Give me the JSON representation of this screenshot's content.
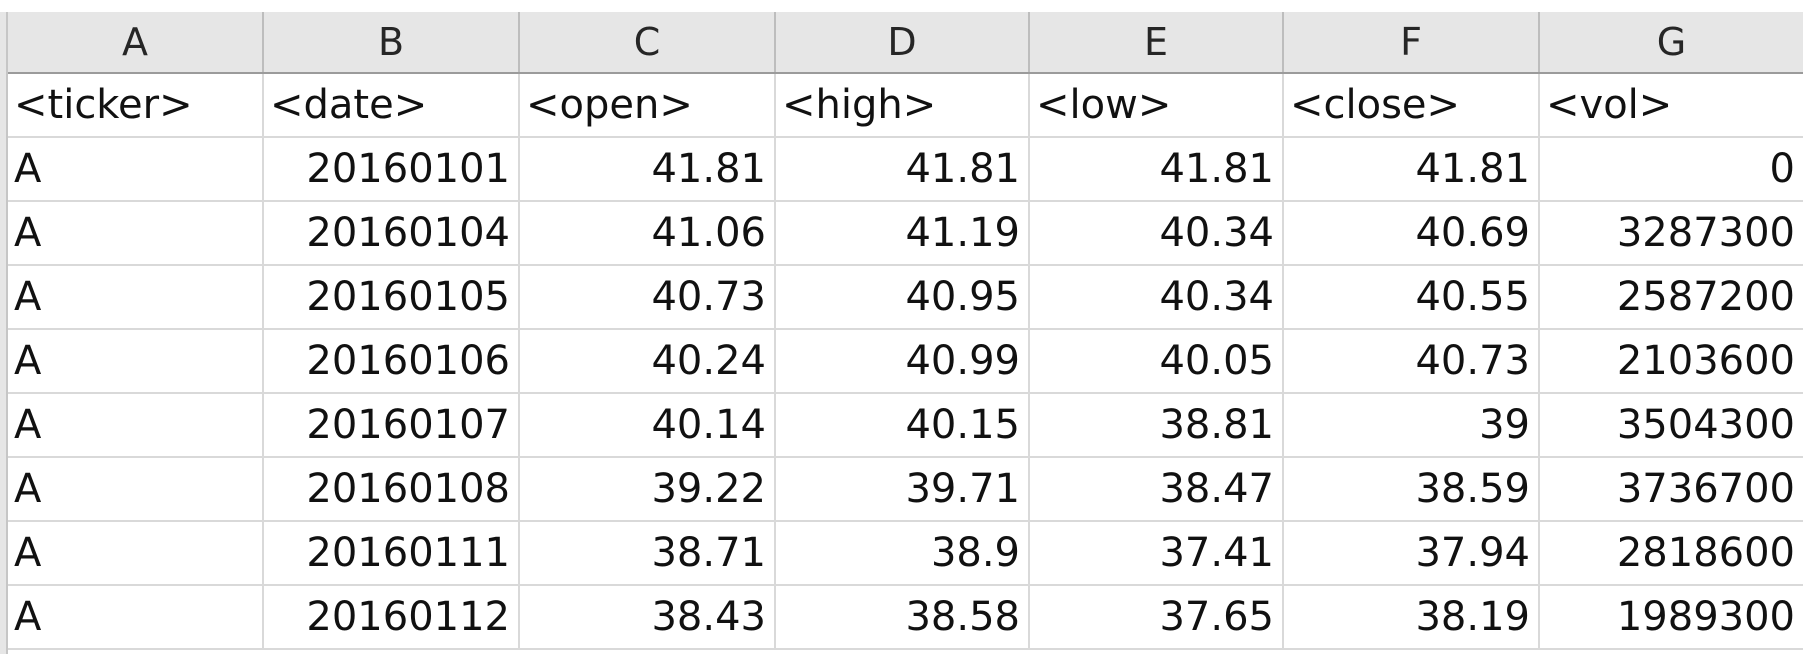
{
  "column_headers": [
    "A",
    "B",
    "C",
    "D",
    "E",
    "F",
    "G"
  ],
  "field_headers": [
    "<ticker>",
    "<date>",
    "<open>",
    "<high>",
    "<low>",
    "<close>",
    "<vol>"
  ],
  "rows": [
    [
      "A",
      "20160101",
      "41.81",
      "41.81",
      "41.81",
      "41.81",
      "0"
    ],
    [
      "A",
      "20160104",
      "41.06",
      "41.19",
      "40.34",
      "40.69",
      "3287300"
    ],
    [
      "A",
      "20160105",
      "40.73",
      "40.95",
      "40.34",
      "40.55",
      "2587200"
    ],
    [
      "A",
      "20160106",
      "40.24",
      "40.99",
      "40.05",
      "40.73",
      "2103600"
    ],
    [
      "A",
      "20160107",
      "40.14",
      "40.15",
      "38.81",
      "39",
      "3504300"
    ],
    [
      "A",
      "20160108",
      "39.22",
      "39.71",
      "38.47",
      "38.59",
      "3736700"
    ],
    [
      "A",
      "20160111",
      "38.71",
      "38.9",
      "37.41",
      "37.94",
      "2818600"
    ],
    [
      "A",
      "20160112",
      "38.43",
      "38.58",
      "37.65",
      "38.19",
      "1989300"
    ]
  ]
}
